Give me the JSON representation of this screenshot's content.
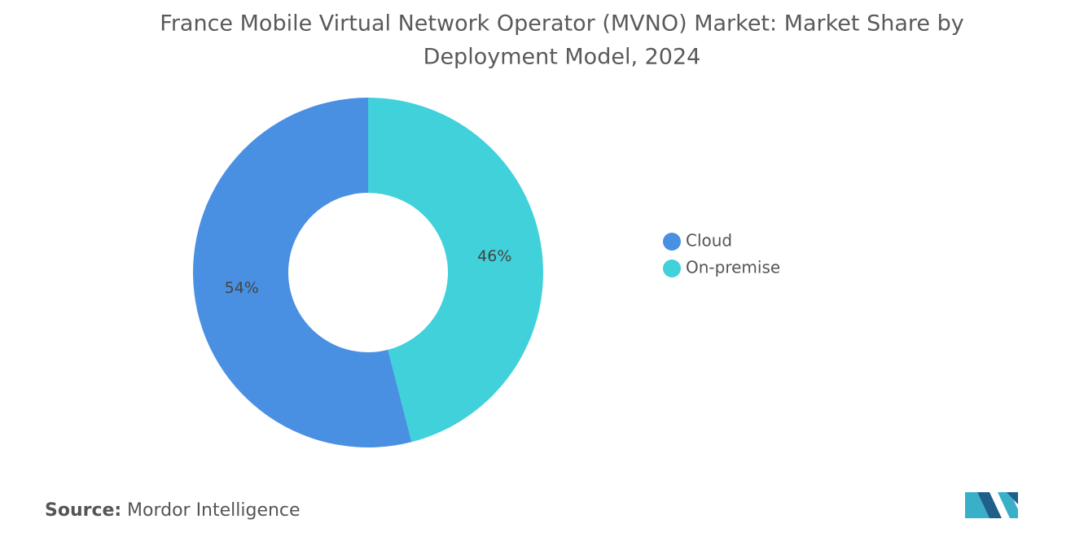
{
  "chart_data": {
    "type": "donut",
    "title": [
      "France Mobile Virtual Network Operator (MVNO) Market: Market Share by",
      "Deployment Model, 2024"
    ],
    "categories": [
      "Cloud",
      "On-premise"
    ],
    "values": [
      54,
      46
    ],
    "value_labels": [
      "54%",
      "46%"
    ],
    "colors": [
      "#4a90e2",
      "#40d1db"
    ],
    "source_label": "Source:",
    "source": "Mordor Intelligence"
  }
}
